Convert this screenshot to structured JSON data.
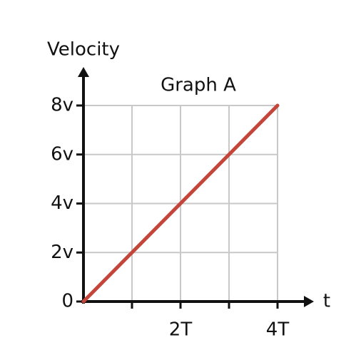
{
  "chart_data": {
    "type": "line",
    "title": "Graph A",
    "ylabel": "Velocity",
    "xlabel": "t",
    "x": [
      0,
      4
    ],
    "series": [
      {
        "color": "#c4453a",
        "values": [
          0,
          8
        ]
      }
    ],
    "xlim": [
      0,
      4
    ],
    "ylim": [
      0,
      8
    ],
    "xticks": [
      {
        "value": 1,
        "label": null
      },
      {
        "value": 2,
        "label": "2T"
      },
      {
        "value": 3,
        "label": null
      },
      {
        "value": 4,
        "label": "4T"
      }
    ],
    "yticks": [
      0,
      {
        "value": 2,
        "label": "2v"
      },
      {
        "value": 4,
        "label": "4v"
      },
      {
        "value": 6,
        "label": "6v"
      },
      {
        "value": 8,
        "label": "8v"
      }
    ],
    "grid": true
  }
}
